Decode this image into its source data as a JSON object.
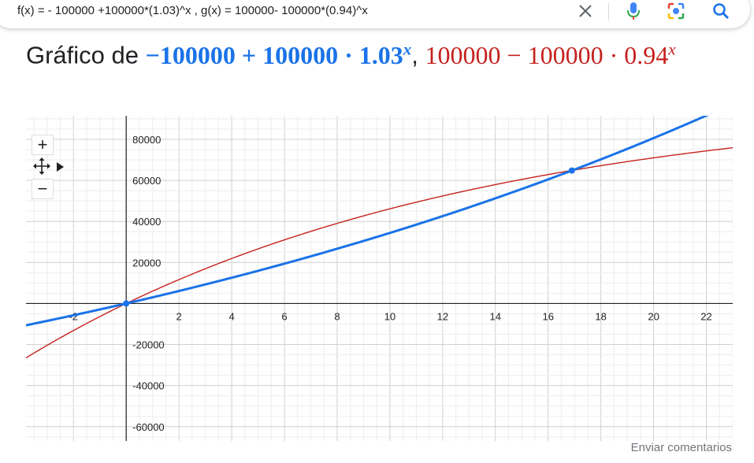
{
  "search": {
    "query": "f(x) = - 100000 +100000*(1.03)^x , g(x) = 100000- 100000*(0.94)^x",
    "clear_icon": "close-icon",
    "voice_icon": "microphone-icon",
    "lens_icon": "camera-lens-icon",
    "search_icon": "search-icon"
  },
  "header": {
    "prefix": "Gráfico de",
    "f_expr": "−100000 + 100000 · 1.03",
    "f_exp": "x",
    "separator": ",",
    "g_expr": "100000 − 100000 · 0.94",
    "g_exp": "x"
  },
  "controls": {
    "zoom_in": "+",
    "zoom_out": "−",
    "pan_icon": "move-arrows-icon",
    "expand_icon": "triangle-right-icon"
  },
  "feedback_label": "Enviar comentarios",
  "colors": {
    "f": "#1a73e8",
    "g": "#c5221f",
    "grid": "#d5d5d5",
    "axis": "#202124"
  },
  "chart_data": {
    "type": "line",
    "x_ticks": [
      -2,
      2,
      4,
      6,
      8,
      10,
      12,
      14,
      16,
      18,
      20,
      22
    ],
    "y_ticks": [
      -60000,
      -40000,
      -20000,
      20000,
      40000,
      60000,
      80000
    ],
    "xlim": [
      -3.8,
      23
    ],
    "ylim": [
      -67000,
      91500
    ],
    "grid": true,
    "series": [
      {
        "name": "−100000 + 100000 · 1.03^x",
        "base": 1.03,
        "sign": 1,
        "values_sample": [
          [
            -4,
            -11151
          ],
          [
            0,
            0
          ],
          [
            5,
            15927
          ],
          [
            10,
            34392
          ],
          [
            15,
            55797
          ],
          [
            20,
            80611
          ],
          [
            22,
            91610
          ]
        ]
      },
      {
        "name": "100000 − 100000 · 0.94^x",
        "base": 0.94,
        "sign": -1,
        "values_sample": [
          [
            -4,
            -28015
          ],
          [
            0,
            0
          ],
          [
            5,
            26610
          ],
          [
            10,
            46135
          ],
          [
            15,
            60471
          ],
          [
            20,
            70989
          ],
          [
            23,
            75925
          ]
        ]
      }
    ],
    "points": [
      {
        "x": 0,
        "y": 0
      },
      {
        "x": 16.9,
        "y": 64800
      }
    ]
  }
}
